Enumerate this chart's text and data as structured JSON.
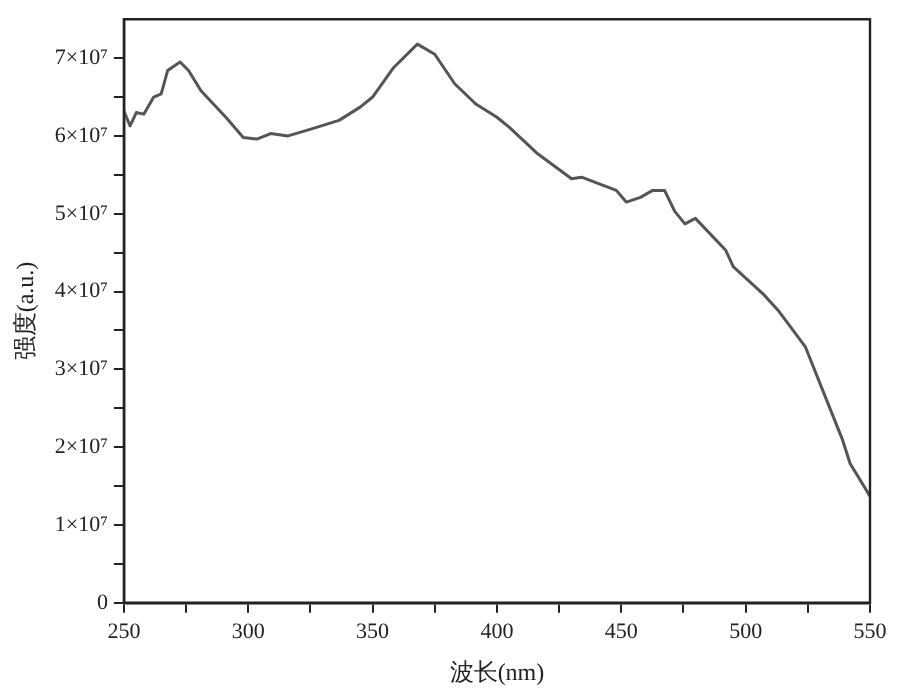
{
  "chart_data": {
    "type": "line",
    "xlabel": "波长(nm)",
    "ylabel": "强度(a.u.)",
    "xlim": [
      250,
      550
    ],
    "xticks": [
      250,
      {
        "value": 275,
        "label": null
      },
      300,
      {
        "value": 325,
        "label": null
      },
      350,
      {
        "value": 375,
        "label": null
      },
      400,
      {
        "value": 425,
        "label": null
      },
      450,
      {
        "value": 475,
        "label": null
      },
      500,
      {
        "value": 525,
        "label": null
      },
      550
    ],
    "ylim": [
      0,
      75000000
    ],
    "yticks": [
      0,
      {
        "value": 5000000,
        "label": null
      },
      {
        "value": 10000000,
        "label": "1×10⁷"
      },
      {
        "value": 15000000,
        "label": null
      },
      {
        "value": 20000000,
        "label": "2×10⁷"
      },
      {
        "value": 25000000,
        "label": null
      },
      {
        "value": 30000000,
        "label": "3×10⁷"
      },
      {
        "value": 35000000,
        "label": null
      },
      {
        "value": 40000000,
        "label": "4×10⁷"
      },
      {
        "value": 45000000,
        "label": null
      },
      {
        "value": 50000000,
        "label": "5×10⁷"
      },
      {
        "value": 55000000,
        "label": null
      },
      {
        "value": 60000000,
        "label": "6×10⁷"
      },
      {
        "value": 65000000,
        "label": null
      },
      {
        "value": 70000000,
        "label": "7×10⁷"
      }
    ],
    "grid": false,
    "legend": false,
    "marker": "none",
    "line_style": "solid",
    "series": [
      {
        "color": "#555555",
        "x": [
          250,
          252.5,
          255,
          258,
          262,
          265,
          267.6,
          272.6,
          276,
          281,
          291,
          298,
          303.5,
          309,
          316,
          325.5,
          336.5,
          345,
          350,
          358.5,
          368,
          375,
          383,
          391.5,
          400,
          405,
          416.4,
          430,
          434,
          448,
          452,
          457.7,
          462.6,
          467.4,
          471.5,
          475.6,
          479.8,
          492,
          495,
          507,
          513,
          517,
          524,
          532,
          539,
          542,
          550
        ],
        "values": [
          63200000,
          61300000,
          63000000,
          62800000,
          65000000,
          65400000,
          68400000,
          69500000,
          68400000,
          65800000,
          62400000,
          59800000,
          59600000,
          60300000,
          60000000,
          60900000,
          62000000,
          63700000,
          65000000,
          68800000,
          71800000,
          70500000,
          66700000,
          64100000,
          62400000,
          61100000,
          57700000,
          54500000,
          54700000,
          53000000,
          51500000,
          52100000,
          53000000,
          53000000,
          50300000,
          48700000,
          49400000,
          45300000,
          43200000,
          39700000,
          37600000,
          35900000,
          32900000,
          26500000,
          20900000,
          17900000,
          13700000
        ]
      }
    ]
  }
}
